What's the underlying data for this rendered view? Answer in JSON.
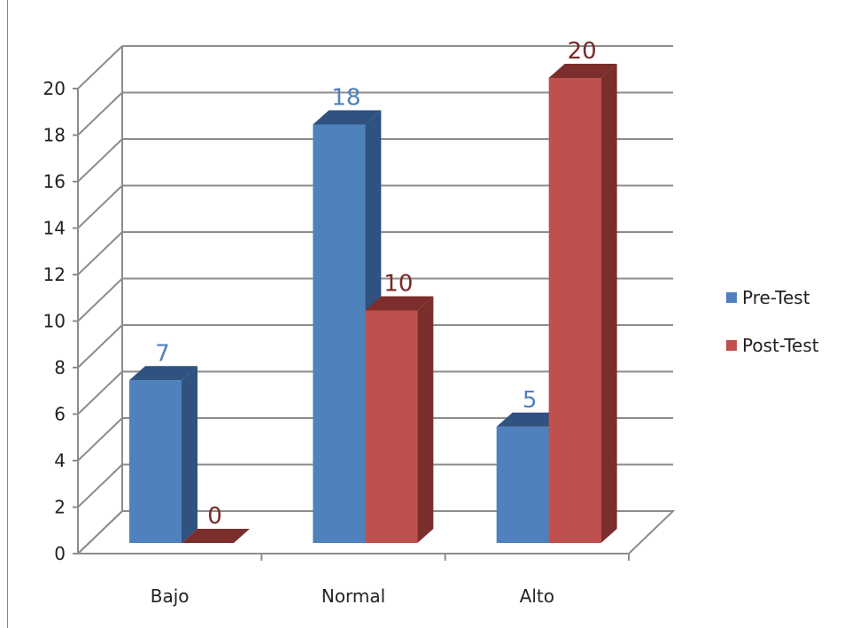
{
  "chart_data": {
    "type": "bar",
    "style": "3d-clustered",
    "categories": [
      "Bajo",
      "Normal",
      "Alto"
    ],
    "series": [
      {
        "name": "Pre-Test",
        "values": [
          7,
          18,
          5
        ],
        "color": "#4F81BD",
        "side_color": "#2F5280",
        "label_color": "#4F81BD"
      },
      {
        "name": "Post-Test",
        "values": [
          0,
          10,
          20
        ],
        "color": "#C0504D",
        "side_color": "#7C2E2C",
        "label_color": "#7A2A28"
      }
    ],
    "yticks": [
      "0",
      "2",
      "4",
      "6",
      "8",
      "10",
      "12",
      "14",
      "16",
      "18",
      "20"
    ],
    "ylim": [
      0,
      20
    ],
    "grid": true,
    "legend_position": "right"
  }
}
